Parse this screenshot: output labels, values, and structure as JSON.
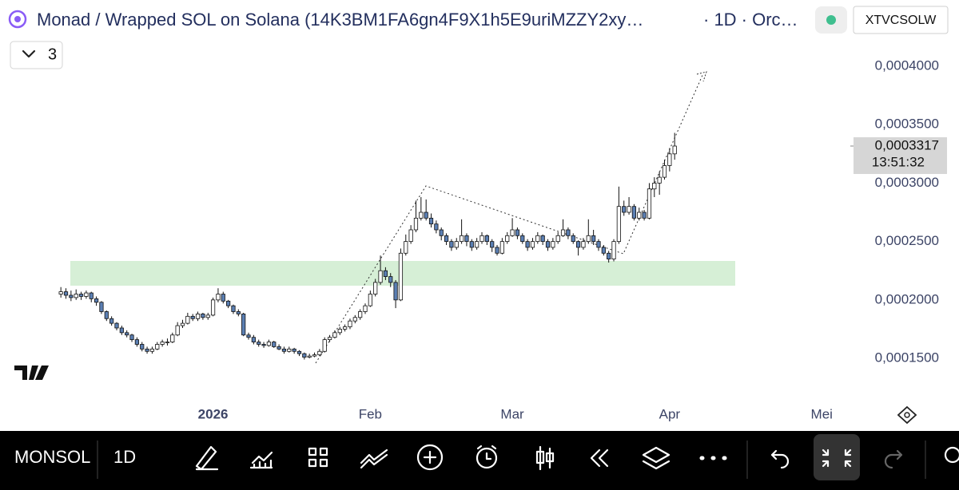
{
  "header": {
    "title": "Monad / Wrapped SOL on Solana (14K3BM1FA6gn4F9X1h5E9uriMZZY2xy…",
    "interval_info": "· 1D · Orc…",
    "symbol": "XTVCSOLW",
    "indicator_count": "3"
  },
  "toolbar": {
    "symbol": "MONSOL",
    "interval": "1D"
  },
  "chart_data": {
    "type": "candlestick",
    "xlim": [
      -12,
      155
    ],
    "xticks": [
      {
        "value": 30,
        "label": "2026"
      },
      {
        "value": 61,
        "label": "Feb"
      },
      {
        "value": 89,
        "label": "Mar"
      },
      {
        "value": 120,
        "label": "Apr"
      },
      {
        "value": 150,
        "label": "Mei"
      }
    ],
    "ylim": [
      0.0001152,
      0.0004321
    ],
    "yticks": [
      {
        "value": 0.00015,
        "label": "0,0001500"
      },
      {
        "value": 0.0002,
        "label": "0,0002000"
      },
      {
        "value": 0.00025,
        "label": "0,0002500"
      },
      {
        "value": 0.0003,
        "label": "0,0003000"
      },
      {
        "value": 0.00035,
        "label": "0,0003500"
      },
      {
        "value": 0.0004,
        "label": "0,0004000"
      }
    ],
    "grid": false,
    "up_color": "#ffffff",
    "down_color": "#5b7fb3",
    "outline_color": "#111111",
    "last_price": {
      "value": 0.0003317,
      "label": "0,0003317"
    },
    "countdown": "13:51:32",
    "ohlc": [
      [
        0.000205,
        0.000211,
        0.000202,
        0.000207
      ],
      [
        0.000207,
        0.00021,
        0.000201,
        0.000204
      ],
      [
        0.000204,
        0.000208,
        0.000199,
        0.000202
      ],
      [
        0.000202,
        0.000209,
        0.0002,
        0.000205
      ],
      [
        0.000205,
        0.000207,
        0.0002,
        0.000203
      ],
      [
        0.000203,
        0.000208,
        0.000201,
        0.000206
      ],
      [
        0.000206,
        0.000207,
        0.000198,
        0.000201
      ],
      [
        0.000201,
        0.000203,
        0.000195,
        0.000198
      ],
      [
        0.000198,
        0.000199,
        0.000188,
        0.00019
      ],
      [
        0.00019,
        0.000191,
        0.000182,
        0.000184
      ],
      [
        0.000184,
        0.000186,
        0.000178,
        0.00018
      ],
      [
        0.00018,
        0.000181,
        0.000174,
        0.000176
      ],
      [
        0.000176,
        0.000178,
        0.00017,
        0.000172
      ],
      [
        0.000172,
        0.000174,
        0.000168,
        0.00017
      ],
      [
        0.00017,
        0.000171,
        0.000164,
        0.000166
      ],
      [
        0.000166,
        0.000168,
        0.00016,
        0.000162
      ],
      [
        0.000162,
        0.000164,
        0.000156,
        0.000158
      ],
      [
        0.000158,
        0.00016,
        0.000154,
        0.000156
      ],
      [
        0.000156,
        0.00016,
        0.000154,
        0.000158
      ],
      [
        0.000158,
        0.000164,
        0.000157,
        0.000162
      ],
      [
        0.000162,
        0.000166,
        0.00016,
        0.000164
      ],
      [
        0.000164,
        0.000167,
        0.000161,
        0.000164
      ],
      [
        0.000164,
        0.000172,
        0.000163,
        0.00017
      ],
      [
        0.00017,
        0.000181,
        0.000169,
        0.000178
      ],
      [
        0.000178,
        0.000183,
        0.000176,
        0.00018
      ],
      [
        0.00018,
        0.000189,
        0.000179,
        0.000186
      ],
      [
        0.000186,
        0.000188,
        0.000182,
        0.000184
      ],
      [
        0.000184,
        0.00019,
        0.000182,
        0.000188
      ],
      [
        0.000188,
        0.000189,
        0.000183,
        0.000185
      ],
      [
        0.000185,
        0.000189,
        0.000183,
        0.000187
      ],
      [
        0.000187,
        0.000202,
        0.000186,
        0.0002
      ],
      [
        0.0002,
        0.00021,
        0.000198,
        0.000205
      ],
      [
        0.000205,
        0.000207,
        0.000197,
        0.000199
      ],
      [
        0.000199,
        0.0002,
        0.000193,
        0.000195
      ],
      [
        0.000195,
        0.000196,
        0.000188,
        0.00019
      ],
      [
        0.00019,
        0.000192,
        0.000186,
        0.000188
      ],
      [
        0.000188,
        0.000189,
        0.000169,
        0.00017
      ],
      [
        0.00017,
        0.000172,
        0.000166,
        0.000168
      ],
      [
        0.000168,
        0.00017,
        0.000162,
        0.000164
      ],
      [
        0.000164,
        0.000166,
        0.00016,
        0.000162
      ],
      [
        0.000162,
        0.000164,
        0.000159,
        0.000161
      ],
      [
        0.000161,
        0.000166,
        0.00016,
        0.000164
      ],
      [
        0.000164,
        0.000165,
        0.000159,
        0.00016
      ],
      [
        0.00016,
        0.000162,
        0.000157,
        0.000158
      ],
      [
        0.000158,
        0.00016,
        0.000154,
        0.000156
      ],
      [
        0.000156,
        0.00016,
        0.000155,
        0.000158
      ],
      [
        0.000158,
        0.000159,
        0.000154,
        0.000156
      ],
      [
        0.000156,
        0.000157,
        0.000152,
        0.000154
      ],
      [
        0.000154,
        0.000155,
        0.000149,
        0.000151
      ],
      [
        0.000151,
        0.000154,
        0.00015,
        0.000152
      ],
      [
        0.000152,
        0.000155,
        0.000151,
        0.000153
      ],
      [
        0.000153,
        0.000158,
        0.000152,
        0.000156
      ],
      [
        0.000156,
        0.000168,
        0.000155,
        0.000166
      ],
      [
        0.000166,
        0.00017,
        0.000164,
        0.000168
      ],
      [
        0.000168,
        0.000174,
        0.000167,
        0.000172
      ],
      [
        0.000172,
        0.000177,
        0.00017,
        0.000175
      ],
      [
        0.000175,
        0.000179,
        0.000173,
        0.000177
      ],
      [
        0.000177,
        0.000184,
        0.000175,
        0.000182
      ],
      [
        0.000182,
        0.000187,
        0.00018,
        0.000185
      ],
      [
        0.000185,
        0.000192,
        0.000183,
        0.00019
      ],
      [
        0.00019,
        0.000197,
        0.000188,
        0.000195
      ],
      [
        0.000195,
        0.000208,
        0.000194,
        0.000205
      ],
      [
        0.000205,
        0.000218,
        0.000203,
        0.000215
      ],
      [
        0.000215,
        0.000238,
        0.000213,
        0.000225
      ],
      [
        0.000225,
        0.000228,
        0.000217,
        0.00022
      ],
      [
        0.00022,
        0.000223,
        0.000211,
        0.000215
      ],
      [
        0.000215,
        0.000217,
        0.000193,
        0.0002
      ],
      [
        0.0002,
        0.000244,
        0.000199,
        0.00024
      ],
      [
        0.00024,
        0.000256,
        0.000238,
        0.00025
      ],
      [
        0.00025,
        0.000264,
        0.000248,
        0.00026
      ],
      [
        0.00026,
        0.000285,
        0.000258,
        0.00027
      ],
      [
        0.00027,
        0.000288,
        0.000268,
        0.000275
      ],
      [
        0.000275,
        0.000286,
        0.000268,
        0.00027
      ],
      [
        0.00027,
        0.000274,
        0.000262,
        0.000265
      ],
      [
        0.000265,
        0.000268,
        0.000257,
        0.00026
      ],
      [
        0.00026,
        0.000262,
        0.000251,
        0.000255
      ],
      [
        0.000255,
        0.000257,
        0.000247,
        0.00025
      ],
      [
        0.00025,
        0.000252,
        0.000242,
        0.000245
      ],
      [
        0.000245,
        0.000253,
        0.000243,
        0.00025
      ],
      [
        0.00025,
        0.000269,
        0.000248,
        0.000255
      ],
      [
        0.000255,
        0.000257,
        0.000246,
        0.00025
      ],
      [
        0.00025,
        0.000252,
        0.000242,
        0.000245
      ],
      [
        0.000245,
        0.000253,
        0.000243,
        0.00025
      ],
      [
        0.00025,
        0.000258,
        0.000248,
        0.000255
      ],
      [
        0.000255,
        0.000256,
        0.000247,
        0.00025
      ],
      [
        0.00025,
        0.000252,
        0.000241,
        0.000245
      ],
      [
        0.000245,
        0.000247,
        0.000238,
        0.00024
      ],
      [
        0.00024,
        0.000253,
        0.000239,
        0.00025
      ],
      [
        0.00025,
        0.000258,
        0.000248,
        0.000255
      ],
      [
        0.000255,
        0.00027,
        0.000254,
        0.00026
      ],
      [
        0.00026,
        0.000262,
        0.000252,
        0.000255
      ],
      [
        0.000255,
        0.000257,
        0.000248,
        0.00025
      ],
      [
        0.00025,
        0.000252,
        0.000242,
        0.000245
      ],
      [
        0.000245,
        0.000253,
        0.000243,
        0.00025
      ],
      [
        0.00025,
        0.000258,
        0.000248,
        0.000255
      ],
      [
        0.000255,
        0.000256,
        0.000247,
        0.00025
      ],
      [
        0.00025,
        0.000252,
        0.000242,
        0.000245
      ],
      [
        0.000245,
        0.000253,
        0.000243,
        0.00025
      ],
      [
        0.00025,
        0.000258,
        0.000248,
        0.000255
      ],
      [
        0.000255,
        0.000269,
        0.000254,
        0.00026
      ],
      [
        0.00026,
        0.000262,
        0.000252,
        0.000255
      ],
      [
        0.000255,
        0.000257,
        0.000248,
        0.00025
      ],
      [
        0.00025,
        0.000251,
        0.000238,
        0.000245
      ],
      [
        0.000245,
        0.000253,
        0.000243,
        0.00025
      ],
      [
        0.00025,
        0.000269,
        0.000248,
        0.000255
      ],
      [
        0.000255,
        0.00026,
        0.000247,
        0.00025
      ],
      [
        0.00025,
        0.000252,
        0.000242,
        0.000245
      ],
      [
        0.000245,
        0.000247,
        0.000238,
        0.00024
      ],
      [
        0.00024,
        0.000242,
        0.000232,
        0.000235
      ],
      [
        0.000235,
        0.000252,
        0.000233,
        0.00025
      ],
      [
        0.00025,
        0.000297,
        0.000248,
        0.00028
      ],
      [
        0.00028,
        0.000285,
        0.000272,
        0.000275
      ],
      [
        0.000275,
        0.000288,
        0.000273,
        0.00028
      ],
      [
        0.00028,
        0.000282,
        0.000268,
        0.00027
      ],
      [
        0.00027,
        0.000279,
        0.000268,
        0.000275
      ],
      [
        0.000275,
        0.000277,
        0.000268,
        0.00027
      ],
      [
        0.00027,
        0.0003,
        0.000269,
        0.000295
      ],
      [
        0.000295,
        0.000305,
        0.000288,
        0.0003
      ],
      [
        0.0003,
        0.00031,
        0.00029,
        0.000305
      ],
      [
        0.000305,
        0.00032,
        0.000303,
        0.000315
      ],
      [
        0.000315,
        0.00033,
        0.00031,
        0.000325
      ],
      [
        0.000325,
        0.000343,
        0.00032,
        0.0003317
      ]
    ]
  }
}
